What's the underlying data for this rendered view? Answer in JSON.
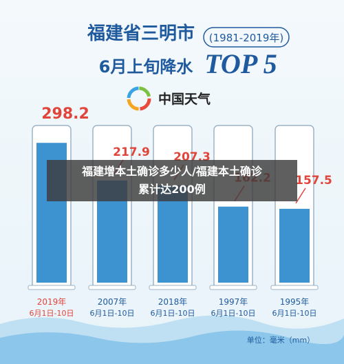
{
  "chart_data": {
    "type": "bar",
    "title": "福建省三明市",
    "subtitle": "(1981-2019年)",
    "title2": "6月上旬降水",
    "title_em": "TOP 5",
    "unit": "单位：毫米（mm）",
    "categories": [
      "2019年",
      "2007年",
      "2018年",
      "1997年",
      "1995年"
    ],
    "date_labels": [
      "6月1日-10日",
      "6月1日-10日",
      "6月1日-10日",
      "6月1日-10日",
      "6月1日-10日"
    ],
    "values": [
      298.2,
      217.9,
      207.3,
      162.2,
      157.5
    ],
    "color": "#3d93cf",
    "ylim": [
      0,
      300
    ]
  },
  "brand": "中国天气",
  "overlay_caption": [
    "福建增本土确诊多少人/福建本土确诊",
    "累计达200例"
  ]
}
